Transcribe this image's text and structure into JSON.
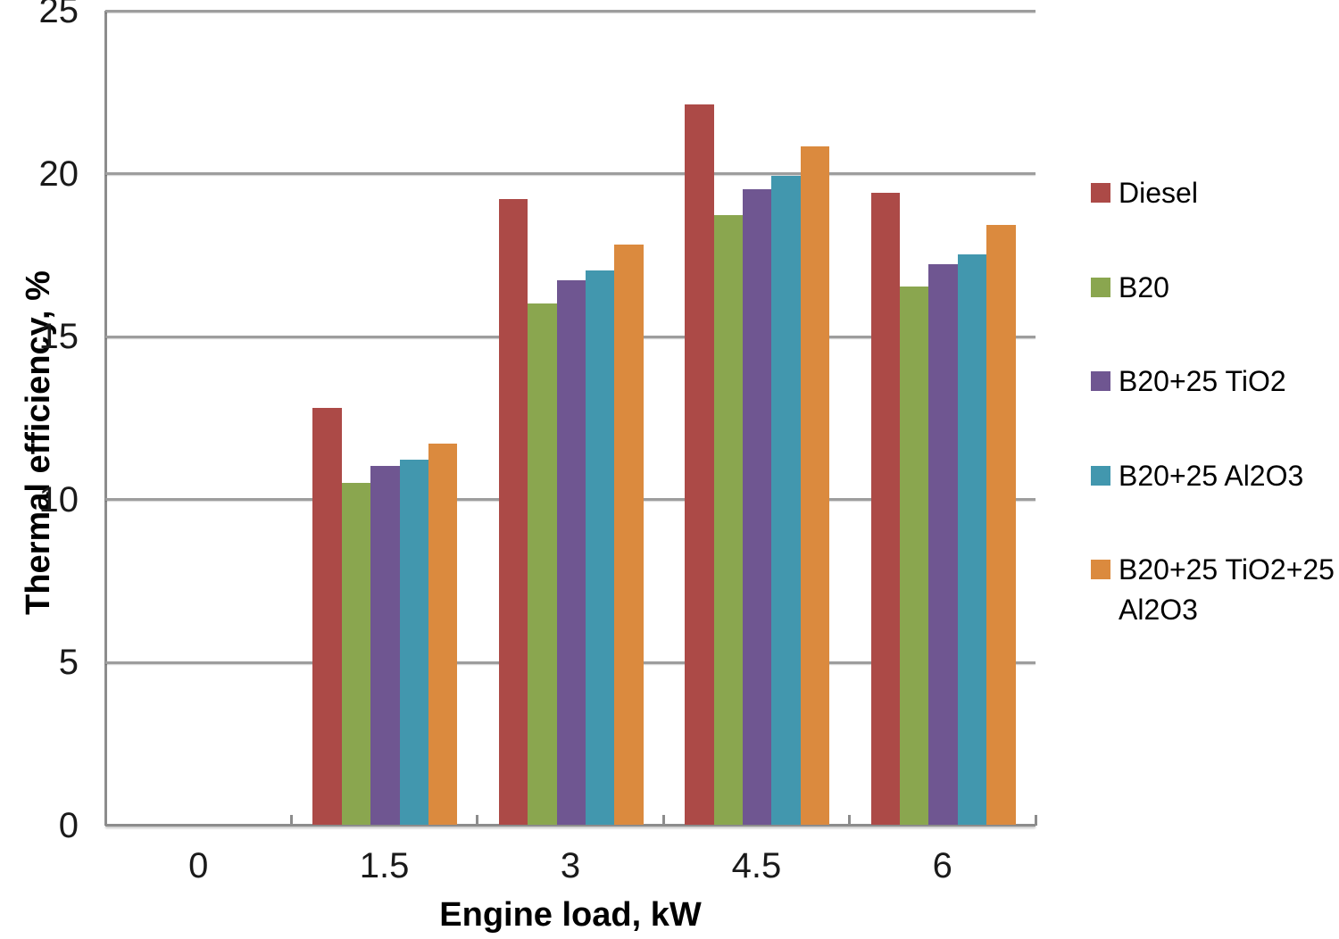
{
  "chart_data": {
    "type": "bar",
    "title": "",
    "xlabel": "Engine load, kW",
    "ylabel": "Thermal efficiency, %",
    "categories": [
      "0",
      "1.5",
      "3",
      "4.5",
      "6"
    ],
    "series": [
      {
        "name": "Diesel",
        "color": "#AC4A47",
        "values": [
          0,
          12.8,
          19.2,
          22.1,
          19.4
        ]
      },
      {
        "name": "B20",
        "color": "#8AA64F",
        "values": [
          0,
          10.5,
          16.0,
          18.7,
          16.5
        ]
      },
      {
        "name": "B20+25 TiO2",
        "color": "#6F5691",
        "values": [
          0,
          11.0,
          16.7,
          19.5,
          17.2
        ]
      },
      {
        "name": "B20+25 Al2O3",
        "color": "#4297AE",
        "values": [
          0,
          11.2,
          17.0,
          19.9,
          17.5
        ]
      },
      {
        "name": "B20+25 TiO2+25 Al2O3",
        "color": "#DB8A3E",
        "values": [
          0,
          11.7,
          17.8,
          20.8,
          18.4
        ]
      }
    ],
    "ylim": [
      0,
      25
    ],
    "yticks": [
      0,
      5,
      10,
      15,
      20,
      25
    ],
    "grid": true,
    "legend_position": "right"
  },
  "style_colors": {
    "gridline": "#9d9d9d",
    "axis": "#8c8c8c",
    "text": "#000000"
  }
}
